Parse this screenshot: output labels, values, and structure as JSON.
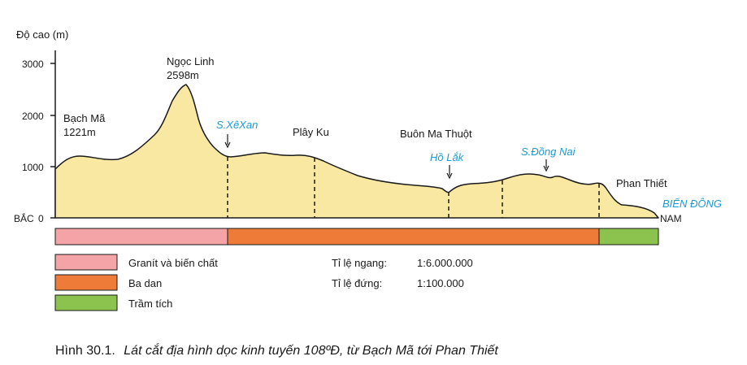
{
  "axis": {
    "ylabel": "Độ cao (m)",
    "ticks": [
      "3000",
      "2000",
      "1000",
      "0"
    ],
    "left_end": "BẮC",
    "right_end": "NAM"
  },
  "places": {
    "bach_ma": "Bạch Mã",
    "bach_ma_h": "1221m",
    "ngoc_linh": "Ngọc Linh",
    "ngoc_linh_h": "2598m",
    "xe_xan": "S.XêXan",
    "play_ku": "Plây Ku",
    "buon_ma_thuot": "Buôn Ma Thuột",
    "ho_lak": "Hồ Lắk",
    "dong_nai": "S.Đồng Nai",
    "phan_thiet": "Phan Thiết",
    "bien_dong": "BIỂN ĐÔNG"
  },
  "legend": [
    {
      "label": "Granít và biến chất",
      "color": "#f4a3a6"
    },
    {
      "label": "Ba dan",
      "color": "#ee7b37"
    },
    {
      "label": "Trầm tích",
      "color": "#8cc34e"
    }
  ],
  "scale": {
    "h_label": "Tỉ lệ ngang:",
    "h_value": "1:6.000.000",
    "v_label": "Tỉ lệ đứng:",
    "v_value": "1:100.000"
  },
  "caption": {
    "number": "Hình 30.1.",
    "text": "Lát cắt địa hình dọc kinh tuyến 108ºĐ, từ Bạch Mã tới Phan Thiết"
  },
  "colors": {
    "terrain_fill": "#f8e8a2",
    "outline": "#1a1a1a",
    "river_blue": "#1a9ad6"
  }
}
